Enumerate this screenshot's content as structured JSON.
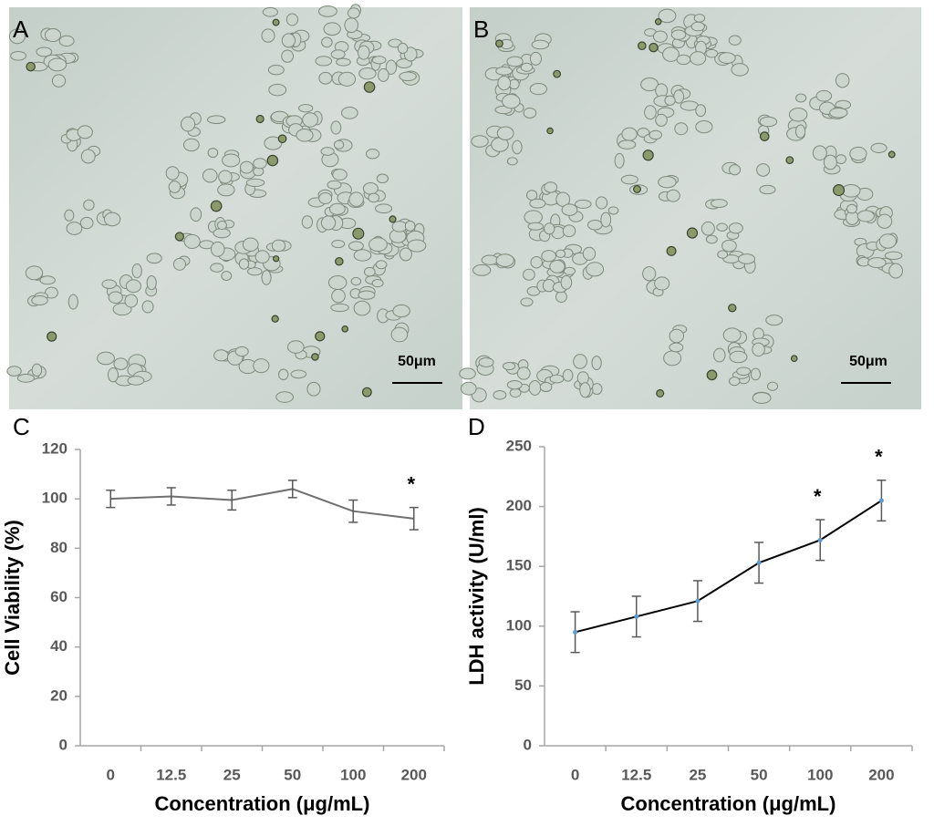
{
  "images": [
    {
      "label": "A",
      "scale_label": "50μm"
    },
    {
      "label": "B",
      "scale_label": "50μm"
    }
  ],
  "chart_data": [
    {
      "type": "line",
      "panel_label": "C",
      "x_label": "Concentration (μg/mL)",
      "y_label": "Cell Viability (%)",
      "categories": [
        "0",
        "12.5",
        "25",
        "50",
        "100",
        "200"
      ],
      "series": [
        {
          "color": "#707070",
          "values": [
            100,
            101,
            99.5,
            104,
            95,
            92
          ],
          "errors": [
            3.5,
            3.5,
            4,
            3.5,
            4.5,
            4.5
          ]
        }
      ],
      "ylim": [
        0,
        120
      ],
      "yticks": [
        0,
        20,
        40,
        60,
        80,
        100,
        120
      ],
      "annotations": [
        {
          "text": "*",
          "x": "200"
        }
      ]
    },
    {
      "type": "line",
      "panel_label": "D",
      "x_label": "Concentration (μg/mL)",
      "y_label": "LDH activity (U/ml)",
      "categories": [
        "0",
        "12.5",
        "25",
        "50",
        "100",
        "200"
      ],
      "series": [
        {
          "color": "#000000",
          "marker_color": "#5b9bd5",
          "values": [
            95,
            108,
            121,
            153,
            172,
            205
          ],
          "errors": [
            17,
            17,
            17,
            17,
            17,
            17
          ]
        }
      ],
      "ylim": [
        0,
        250
      ],
      "yticks": [
        0,
        50,
        100,
        150,
        200,
        250
      ],
      "annotations": [
        {
          "text": "*",
          "x": "100"
        },
        {
          "text": "*",
          "x": "200"
        }
      ]
    }
  ]
}
